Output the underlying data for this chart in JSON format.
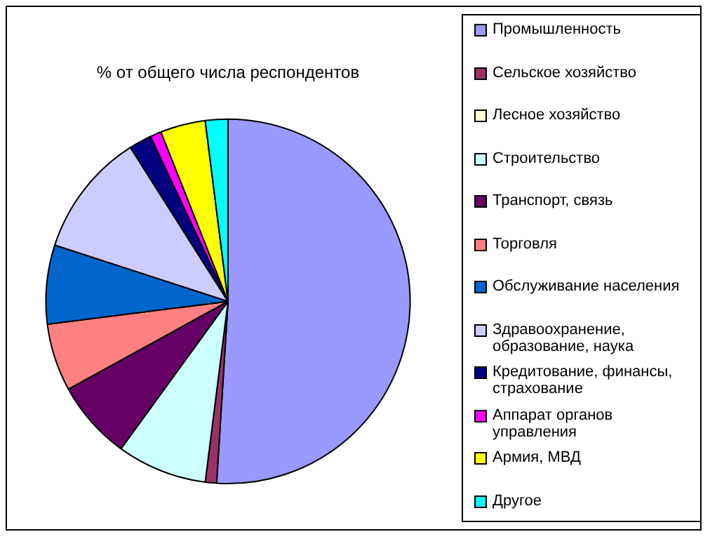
{
  "chart_data": {
    "type": "pie",
    "title": "% от общего числа респондентов",
    "categories": [
      "Промышленность",
      "Сельское хозяйство",
      "Лесное хозяйство",
      "Строительство",
      "Транспорт, связь",
      "Торговля",
      "Обслуживание населения",
      "Здравоохранение, образование, наука",
      "Кредитование, финансы, страхование",
      "Аппарат органов управления",
      "Армия, МВД",
      "Другое"
    ],
    "values": [
      51,
      1,
      0,
      8,
      7,
      6,
      7,
      11,
      2,
      1,
      4,
      2
    ],
    "colors": [
      "#9999ff",
      "#993366",
      "#ffffcc",
      "#ccffff",
      "#660066",
      "#ff8080",
      "#0066cc",
      "#ccccff",
      "#000080",
      "#ff00ff",
      "#ffff00",
      "#00ffff"
    ],
    "legend": "right"
  }
}
